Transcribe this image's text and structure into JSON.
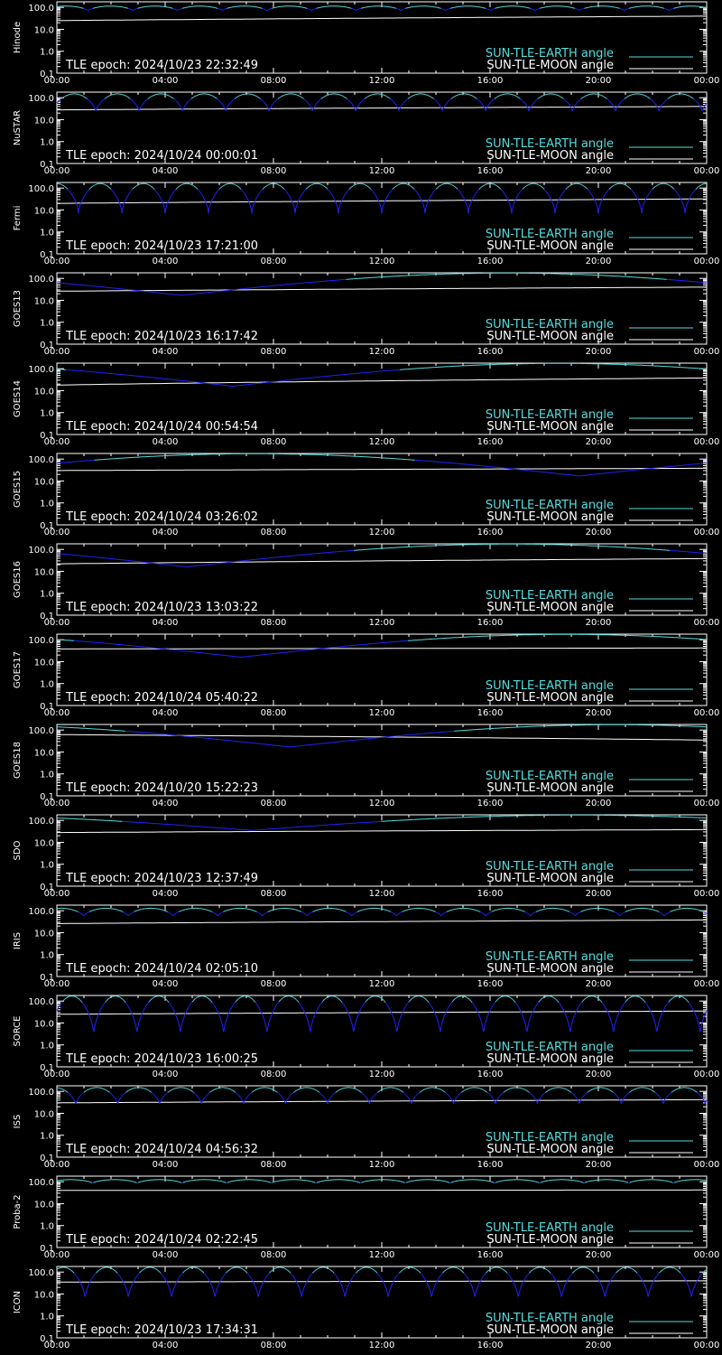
{
  "page": {
    "background": "#000000"
  },
  "colors": {
    "earth": "#55dddd",
    "earth_low": "#2222ff",
    "moon": "#ffffff",
    "axis": "#ffffff"
  },
  "chart_data": {
    "type": "line",
    "y_scale": "log",
    "ylim": [
      0.1,
      180.0
    ],
    "y_ticks": [
      "100.0",
      "10.0",
      "1.0",
      "0.1"
    ],
    "y_tick_values": [
      100,
      10,
      1,
      0.1
    ],
    "x_ticks": [
      "00:00",
      "04:00",
      "08:00",
      "12:00",
      "16:00",
      "20:00",
      "00:00"
    ],
    "x_range_hours": [
      0,
      24
    ],
    "legend": {
      "earth": "SUN-TLE-EARTH angle",
      "moon": "SUN-TLE-MOON angle",
      "placement": "bottom-right"
    },
    "epoch_prefix": "TLE epoch: ",
    "panels": [
      {
        "name": "Hinode",
        "epoch": "2024/10/23 22:32:49",
        "earth_model": {
          "kind": "orbit",
          "lo": 70,
          "hi": 115,
          "period": 1.65,
          "phase": 0.3
        },
        "moon": {
          "start": 25,
          "end": 40
        }
      },
      {
        "name": "NuSTAR",
        "epoch": "2024/10/24 00:00:01",
        "earth_model": {
          "kind": "orbit",
          "lo": 22,
          "hi": 150,
          "period": 1.6,
          "phase": 0.1
        },
        "moon": {
          "start": 28,
          "end": 40
        }
      },
      {
        "name": "Fermi",
        "epoch": "2024/10/23 17:21:00",
        "earth_model": {
          "kind": "orbit",
          "lo": 7,
          "hi": 160,
          "period": 1.6,
          "phase": 0.5
        },
        "moon": {
          "start": 20,
          "end": 32
        }
      },
      {
        "name": "GOES13",
        "epoch": "2024/10/23 16:17:42",
        "earth_model": {
          "kind": "geo",
          "lo": 17,
          "hi": 175,
          "min_hour": 4.6
        },
        "moon": {
          "start": 26,
          "end": 40
        }
      },
      {
        "name": "GOES14",
        "epoch": "2024/10/24 00:54:54",
        "earth_model": {
          "kind": "geo",
          "lo": 16,
          "hi": 175,
          "min_hour": 6.5
        },
        "moon": {
          "start": 18,
          "end": 38
        }
      },
      {
        "name": "GOES15",
        "epoch": "2024/10/24 03:26:02",
        "earth_model": {
          "kind": "geo",
          "lo": 17,
          "hi": 175,
          "min_hour": 19.3
        },
        "moon": {
          "start": 30,
          "end": 38
        }
      },
      {
        "name": "GOES16",
        "epoch": "2024/10/23 13:03:22",
        "earth_model": {
          "kind": "geo",
          "lo": 16,
          "hi": 175,
          "min_hour": 4.8
        },
        "moon": {
          "start": 22,
          "end": 38
        }
      },
      {
        "name": "GOES17",
        "epoch": "2024/10/24 05:40:22",
        "earth_model": {
          "kind": "geo",
          "lo": 16,
          "hi": 175,
          "min_hour": 6.8
        },
        "moon": {
          "start": 38,
          "end": 42
        }
      },
      {
        "name": "GOES18",
        "epoch": "2024/10/20 15:22:23",
        "earth_model": {
          "kind": "geo",
          "lo": 17,
          "hi": 175,
          "min_hour": 8.6
        },
        "moon": {
          "start": 62,
          "end": 35
        }
      },
      {
        "name": "SDO",
        "epoch": "2024/10/23 12:37:49",
        "earth_model": {
          "kind": "geo",
          "lo": 35,
          "hi": 175,
          "min_hour": 7.2
        },
        "moon": {
          "start": 28,
          "end": 38
        }
      },
      {
        "name": "IRIS",
        "epoch": "2024/10/24 02:05:10",
        "earth_model": {
          "kind": "orbit",
          "lo": 55,
          "hi": 130,
          "period": 1.65,
          "phase": 0.4
        },
        "moon": {
          "start": 26,
          "end": 38
        }
      },
      {
        "name": "SORCE",
        "epoch": "2024/10/23 16:00:25",
        "earth_model": {
          "kind": "orbit",
          "lo": 3,
          "hi": 170,
          "period": 1.6,
          "phase": 0.15
        },
        "moon": {
          "start": 25,
          "end": 35
        }
      },
      {
        "name": "ISS",
        "epoch": "2024/10/24 04:56:32",
        "earth_model": {
          "kind": "orbit",
          "lo": 25,
          "hi": 150,
          "period": 1.55,
          "phase": 0.55
        },
        "moon": {
          "start": 30,
          "end": 42
        }
      },
      {
        "name": "Proba-2",
        "epoch": "2024/10/24 02:22:45",
        "earth_model": {
          "kind": "orbit",
          "lo": 85,
          "hi": 125,
          "period": 1.65,
          "phase": 0.2
        },
        "moon": {
          "start": 40,
          "end": 42
        }
      },
      {
        "name": "ICON",
        "epoch": "2024/10/23 17:34:31",
        "earth_model": {
          "kind": "orbit",
          "lo": 6,
          "hi": 165,
          "period": 1.6,
          "phase": 0.35
        },
        "moon": {
          "start": 35,
          "end": 40
        }
      }
    ]
  }
}
